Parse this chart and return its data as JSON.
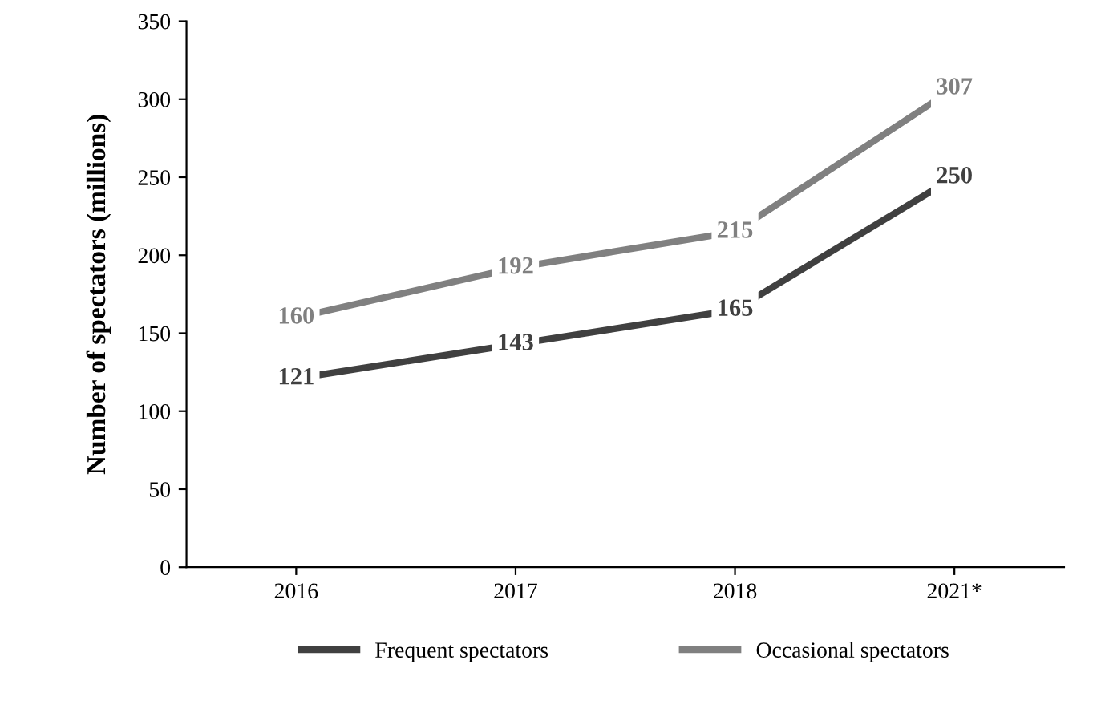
{
  "chart_data": {
    "type": "line",
    "ylabel": "Number of spectators (millions)",
    "categories": [
      "2016",
      "2017",
      "2018",
      "2021*"
    ],
    "series": [
      {
        "name": "Frequent spectators",
        "color": "#404040",
        "values": [
          121,
          143,
          165,
          250
        ]
      },
      {
        "name": "Occasional spectators",
        "color": "#808080",
        "values": [
          160,
          192,
          215,
          307
        ]
      }
    ],
    "ylim": [
      0,
      350
    ],
    "yticks": [
      0,
      50,
      100,
      150,
      200,
      250,
      300,
      350
    ],
    "data_labels": true,
    "grid": false,
    "legend": "bottom",
    "marker": "square",
    "line_style": "solid"
  }
}
